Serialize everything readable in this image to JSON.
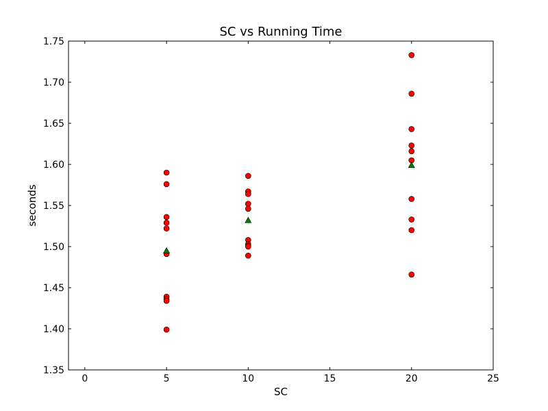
{
  "chart_data": {
    "type": "scatter",
    "title": "SC vs Running Time",
    "xlabel": "SC",
    "ylabel": "seconds",
    "xlim": [
      -1,
      25
    ],
    "ylim": [
      1.35,
      1.75
    ],
    "xticks": [
      0,
      5,
      10,
      15,
      20,
      25
    ],
    "yticks": [
      1.35,
      1.4,
      1.45,
      1.5,
      1.55,
      1.6,
      1.65,
      1.7,
      1.75
    ],
    "xtick_labels": [
      "0",
      "5",
      "10",
      "15",
      "20",
      "25"
    ],
    "ytick_labels": [
      "1.35",
      "1.40",
      "1.45",
      "1.50",
      "1.55",
      "1.60",
      "1.65",
      "1.70",
      "1.75"
    ],
    "grid": false,
    "series": [
      {
        "marker": "circle",
        "color": "#ff0000",
        "points": [
          [
            5,
            1.59
          ],
          [
            5,
            1.576
          ],
          [
            5,
            1.536
          ],
          [
            5,
            1.529
          ],
          [
            5,
            1.522
          ],
          [
            5,
            1.491
          ],
          [
            5,
            1.439
          ],
          [
            5,
            1.436
          ],
          [
            5,
            1.434
          ],
          [
            5,
            1.399
          ],
          [
            10,
            1.586
          ],
          [
            10,
            1.567
          ],
          [
            10,
            1.564
          ],
          [
            10,
            1.552
          ],
          [
            10,
            1.546
          ],
          [
            10,
            1.508
          ],
          [
            10,
            1.503
          ],
          [
            10,
            1.501
          ],
          [
            10,
            1.5
          ],
          [
            10,
            1.489
          ],
          [
            20,
            1.733
          ],
          [
            20,
            1.686
          ],
          [
            20,
            1.643
          ],
          [
            20,
            1.623
          ],
          [
            20,
            1.616
          ],
          [
            20,
            1.605
          ],
          [
            20,
            1.558
          ],
          [
            20,
            1.533
          ],
          [
            20,
            1.52
          ],
          [
            20,
            1.466
          ]
        ]
      },
      {
        "marker": "triangle",
        "color": "#008000",
        "points": [
          [
            5,
            1.495
          ],
          [
            10,
            1.532
          ],
          [
            20,
            1.599
          ]
        ]
      }
    ]
  }
}
